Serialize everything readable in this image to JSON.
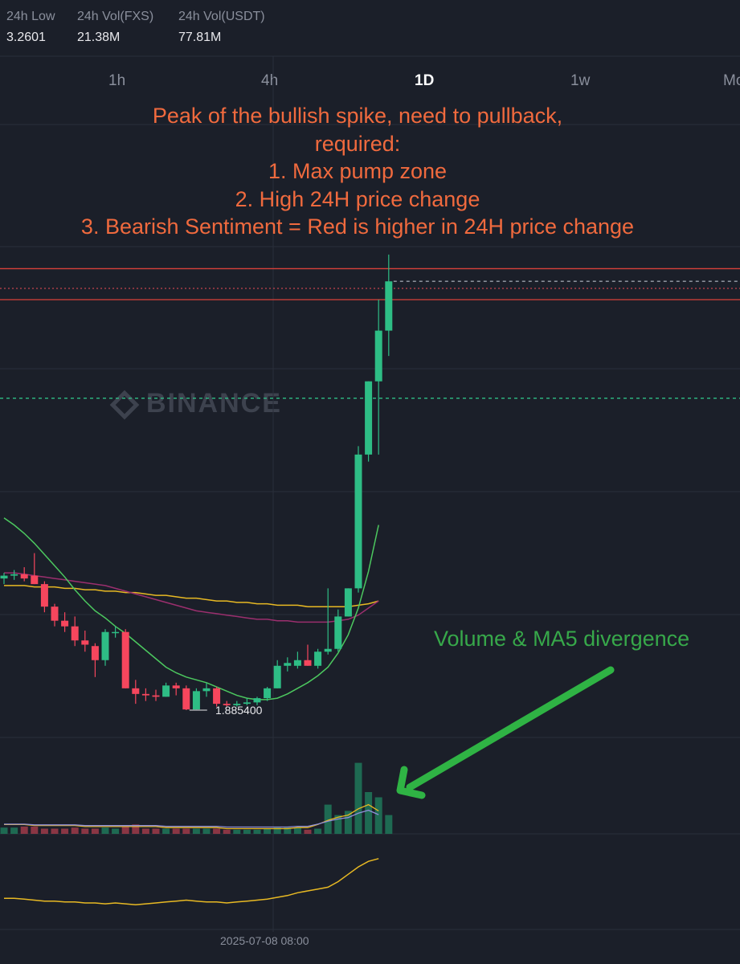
{
  "stats": [
    {
      "label": "24h Low",
      "value": "3.2601"
    },
    {
      "label": "24h Vol(FXS)",
      "value": "21.38M"
    },
    {
      "label": "24h Vol(USDT)",
      "value": "77.81M"
    }
  ],
  "timeframes": [
    {
      "label": "1h",
      "active": false
    },
    {
      "label": "4h",
      "active": false
    },
    {
      "label": "1D",
      "active": true
    },
    {
      "label": "1w",
      "active": false
    },
    {
      "label": "Mo",
      "active": false
    }
  ],
  "watermark": "BINANCE",
  "annotations": {
    "top": [
      "Peak of the bullish spike, need to pullback,",
      "required:",
      "1. Max pump zone",
      "2. High 24H price change",
      "3. Bearish Sentiment = Red is higher in 24H price change"
    ],
    "green": "Volume & MA5 divergence"
  },
  "colors": {
    "up": "#2ebd85",
    "down": "#f6465d",
    "annotation_text": "#f06a3e",
    "arrow": "#2fb344",
    "level_line": "#d9413a",
    "ma_short": "#4cc85f",
    "ma_mid": "#9b2f6e",
    "ma_long": "#e8b923",
    "vol_ma": "#8f8fd8"
  },
  "chart_data": {
    "type": "candlestick",
    "timeframe": "1D",
    "low_label": "1.885400",
    "time_label": "2025-07-08 08:00",
    "candles": [
      {
        "o": 2.82,
        "h": 2.86,
        "l": 2.78,
        "c": 2.84
      },
      {
        "o": 2.84,
        "h": 2.88,
        "l": 2.81,
        "c": 2.85
      },
      {
        "o": 2.85,
        "h": 2.9,
        "l": 2.8,
        "c": 2.82
      },
      {
        "o": 2.84,
        "h": 3.0,
        "l": 2.78,
        "c": 2.78
      },
      {
        "o": 2.78,
        "h": 2.8,
        "l": 2.58,
        "c": 2.62
      },
      {
        "o": 2.62,
        "h": 2.64,
        "l": 2.48,
        "c": 2.52
      },
      {
        "o": 2.52,
        "h": 2.58,
        "l": 2.44,
        "c": 2.48
      },
      {
        "o": 2.48,
        "h": 2.55,
        "l": 2.34,
        "c": 2.38
      },
      {
        "o": 2.38,
        "h": 2.45,
        "l": 2.3,
        "c": 2.35
      },
      {
        "o": 2.34,
        "h": 2.36,
        "l": 2.12,
        "c": 2.24
      },
      {
        "o": 2.24,
        "h": 2.46,
        "l": 2.2,
        "c": 2.44
      },
      {
        "o": 2.44,
        "h": 2.48,
        "l": 2.4,
        "c": 2.44
      },
      {
        "o": 2.44,
        "h": 2.46,
        "l": 2.04,
        "c": 2.04
      },
      {
        "o": 2.04,
        "h": 2.1,
        "l": 1.93,
        "c": 2.0
      },
      {
        "o": 2.0,
        "h": 2.04,
        "l": 1.95,
        "c": 1.99
      },
      {
        "o": 1.99,
        "h": 2.03,
        "l": 1.95,
        "c": 1.98
      },
      {
        "o": 1.98,
        "h": 2.08,
        "l": 1.98,
        "c": 2.06
      },
      {
        "o": 2.06,
        "h": 2.08,
        "l": 1.99,
        "c": 2.04
      },
      {
        "o": 2.04,
        "h": 2.06,
        "l": 1.885,
        "c": 1.89
      },
      {
        "o": 1.89,
        "h": 2.04,
        "l": 1.89,
        "c": 2.02
      },
      {
        "o": 2.02,
        "h": 2.08,
        "l": 1.98,
        "c": 2.04
      },
      {
        "o": 2.04,
        "h": 2.05,
        "l": 1.91,
        "c": 1.93
      },
      {
        "o": 1.93,
        "h": 1.95,
        "l": 1.91,
        "c": 1.92
      },
      {
        "o": 1.92,
        "h": 1.95,
        "l": 1.91,
        "c": 1.93
      },
      {
        "o": 1.93,
        "h": 1.97,
        "l": 1.92,
        "c": 1.94
      },
      {
        "o": 1.94,
        "h": 1.98,
        "l": 1.92,
        "c": 1.97
      },
      {
        "o": 1.97,
        "h": 2.05,
        "l": 1.95,
        "c": 2.04
      },
      {
        "o": 2.04,
        "h": 2.24,
        "l": 2.04,
        "c": 2.2
      },
      {
        "o": 2.2,
        "h": 2.26,
        "l": 2.16,
        "c": 2.22
      },
      {
        "o": 2.2,
        "h": 2.3,
        "l": 2.18,
        "c": 2.24
      },
      {
        "o": 2.24,
        "h": 2.35,
        "l": 2.2,
        "c": 2.2
      },
      {
        "o": 2.2,
        "h": 2.32,
        "l": 2.18,
        "c": 2.3
      },
      {
        "o": 2.3,
        "h": 2.75,
        "l": 2.28,
        "c": 2.32
      },
      {
        "o": 2.32,
        "h": 2.6,
        "l": 2.3,
        "c": 2.55
      },
      {
        "o": 2.55,
        "h": 2.75,
        "l": 2.55,
        "c": 2.75
      },
      {
        "o": 2.75,
        "h": 3.76,
        "l": 2.72,
        "c": 3.7
      },
      {
        "o": 3.7,
        "h": 4.22,
        "l": 3.65,
        "c": 4.22
      },
      {
        "o": 4.22,
        "h": 4.8,
        "l": 3.7,
        "c": 4.58
      },
      {
        "o": 4.58,
        "h": 5.12,
        "l": 4.4,
        "c": 4.93
      }
    ],
    "ma_short": [
      3.25,
      3.2,
      3.14,
      3.07,
      2.99,
      2.91,
      2.83,
      2.74,
      2.66,
      2.59,
      2.54,
      2.48,
      2.43,
      2.37,
      2.31,
      2.25,
      2.19,
      2.15,
      2.12,
      2.1,
      2.08,
      2.05,
      2.02,
      1.99,
      1.97,
      1.96,
      1.96,
      1.97,
      2.0,
      2.04,
      2.08,
      2.13,
      2.19,
      2.29,
      2.42,
      2.61,
      2.87,
      3.2
    ],
    "ma_mid": [
      2.86,
      2.86,
      2.85,
      2.84,
      2.83,
      2.82,
      2.81,
      2.8,
      2.79,
      2.78,
      2.77,
      2.75,
      2.73,
      2.71,
      2.69,
      2.67,
      2.65,
      2.63,
      2.61,
      2.59,
      2.58,
      2.57,
      2.56,
      2.55,
      2.54,
      2.53,
      2.53,
      2.52,
      2.52,
      2.51,
      2.51,
      2.51,
      2.51,
      2.52,
      2.53,
      2.56,
      2.61,
      2.66
    ],
    "ma_long": [
      2.77,
      2.77,
      2.77,
      2.76,
      2.76,
      2.76,
      2.75,
      2.75,
      2.74,
      2.74,
      2.73,
      2.73,
      2.72,
      2.72,
      2.71,
      2.7,
      2.7,
      2.69,
      2.68,
      2.68,
      2.67,
      2.66,
      2.66,
      2.65,
      2.65,
      2.64,
      2.64,
      2.63,
      2.63,
      2.63,
      2.62,
      2.62,
      2.62,
      2.62,
      2.62,
      2.63,
      2.64,
      2.66
    ],
    "levels": [
      {
        "price": 5.02,
        "style": "solid",
        "color": "#d9413a"
      },
      {
        "price": 4.88,
        "style": "dotted",
        "color": "#c4454f"
      },
      {
        "price": 4.8,
        "style": "solid",
        "color": "#d9413a"
      },
      {
        "price": 4.93,
        "style": "dashed",
        "color": "#9aa0ab",
        "from_last": true
      },
      {
        "price": 4.1,
        "style": "dashed",
        "color": "#2ebd85"
      }
    ],
    "volumes": [
      6,
      6,
      7,
      7,
      5,
      5,
      5,
      6,
      5,
      5,
      6,
      5,
      7,
      9,
      5,
      5,
      5,
      5,
      5,
      5,
      5,
      5,
      4,
      4,
      4,
      4,
      5,
      6,
      6,
      6,
      4,
      5,
      28,
      18,
      22,
      68,
      40,
      35,
      18
    ],
    "vol_ma": [
      9,
      9,
      9,
      8,
      8,
      8,
      8,
      8,
      7,
      7,
      7,
      7,
      7,
      7,
      7,
      7,
      6,
      6,
      6,
      6,
      6,
      6,
      5,
      5,
      5,
      5,
      5,
      5,
      5,
      6,
      6,
      9,
      13,
      16,
      18,
      24,
      28,
      22
    ],
    "indicator": [
      32,
      32,
      31,
      30,
      29,
      29,
      28,
      28,
      27,
      27,
      26,
      27,
      26,
      25,
      26,
      27,
      28,
      29,
      30,
      29,
      28,
      28,
      27,
      28,
      29,
      30,
      31,
      33,
      35,
      38,
      40,
      42,
      44,
      50,
      58,
      66,
      72,
      75
    ]
  }
}
